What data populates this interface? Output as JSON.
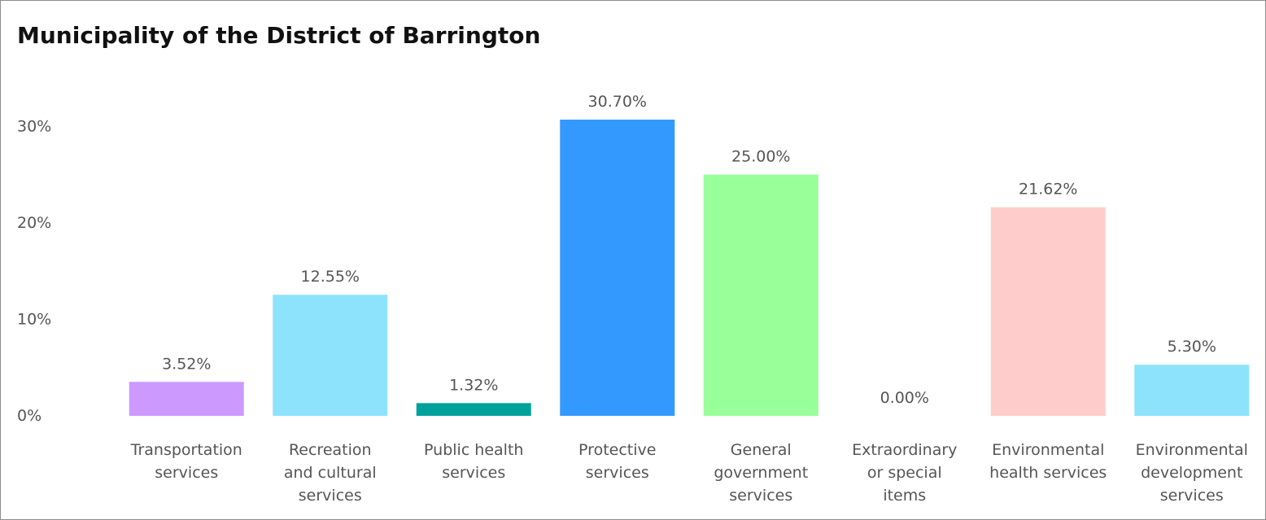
{
  "chart_data": {
    "type": "bar",
    "title": "Municipality of the District of Barrington",
    "xlabel": "",
    "ylabel": "",
    "ylim": [
      0,
      30.7
    ],
    "yticks": [
      0,
      10,
      20,
      30
    ],
    "ytick_labels": [
      "0%",
      "10%",
      "20%",
      "30%"
    ],
    "grid": false,
    "categories": [
      [
        "Transportation",
        "services"
      ],
      [
        "Recreation",
        "and cultural",
        "services"
      ],
      [
        "Public health",
        "services"
      ],
      [
        "Protective",
        "services"
      ],
      [
        "General",
        "government",
        "services"
      ],
      [
        "Extraordinary",
        "or special",
        "items"
      ],
      [
        "Environmental",
        "health services"
      ],
      [
        "Environmental",
        "development",
        "services"
      ]
    ],
    "values": [
      3.52,
      12.55,
      1.32,
      30.7,
      25.0,
      0.0,
      21.62,
      5.3
    ],
    "value_labels": [
      "3.52%",
      "12.55%",
      "1.32%",
      "30.70%",
      "25.00%",
      "0.00%",
      "21.62%",
      "5.30%"
    ],
    "colors": [
      "#cc99ff",
      "#8ee3fc",
      "#00a19c",
      "#3399ff",
      "#99ff99",
      "#8ee3fc",
      "#ffcccc",
      "#8ee3fc"
    ]
  }
}
